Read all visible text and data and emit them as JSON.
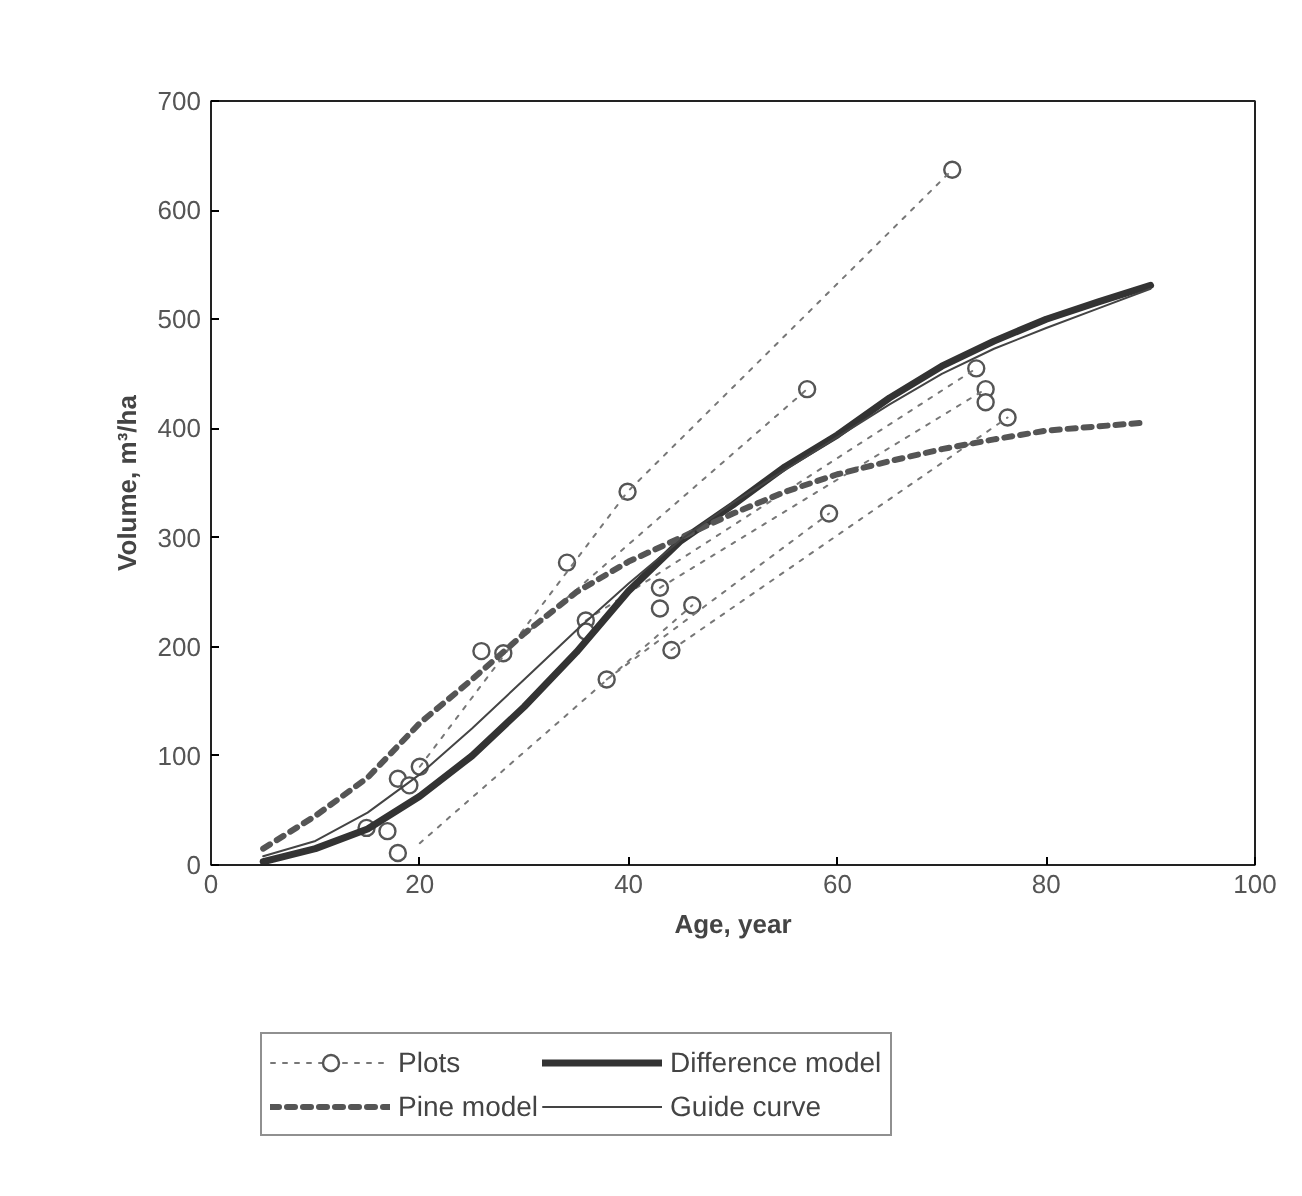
{
  "chart_data": {
    "type": "line",
    "xlabel": "Age, year",
    "ylabel": "Volume, m³/ha",
    "xlim": [
      0,
      100
    ],
    "ylim": [
      0,
      700
    ],
    "xticks": [
      0,
      20,
      40,
      60,
      80,
      100
    ],
    "yticks": [
      0,
      100,
      200,
      300,
      400,
      500,
      600,
      700
    ],
    "grid": false,
    "legend": "bottom",
    "series": [
      {
        "name": "Plots",
        "type": "scatter",
        "marker": "circle",
        "color": "#555555",
        "x": [
          34.1,
          39.9,
          25.9,
          28.0,
          35.9,
          35.9,
          37.9,
          43.0,
          43.0,
          46.1,
          44.1,
          17.9,
          19.0,
          20.0,
          14.9,
          16.9,
          17.9,
          71.0,
          57.1,
          73.3,
          74.2,
          74.2,
          76.3,
          59.2
        ],
        "values": [
          277,
          342,
          196,
          194,
          224,
          214,
          170,
          254,
          235,
          238,
          197,
          79,
          73,
          90,
          34,
          31,
          11,
          637,
          436,
          455,
          436,
          424,
          410,
          322
        ]
      },
      {
        "type": "line",
        "line_style": "dotted",
        "color": "#777777",
        "x": [
          20.0,
          39.9,
          71.0
        ],
        "values": [
          90,
          342,
          637
        ]
      },
      {
        "type": "line",
        "line_style": "dotted",
        "color": "#777777",
        "x": [
          28.0,
          57.1
        ],
        "values": [
          194,
          436
        ]
      },
      {
        "type": "line",
        "line_style": "dotted",
        "color": "#777777",
        "x": [
          35.9,
          73.3
        ],
        "values": [
          224,
          455
        ]
      },
      {
        "type": "line",
        "line_style": "dotted",
        "color": "#777777",
        "x": [
          43.0,
          74.2
        ],
        "values": [
          254,
          436
        ]
      },
      {
        "type": "line",
        "line_style": "dotted",
        "color": "#777777",
        "x": [
          44.1,
          76.3
        ],
        "values": [
          197,
          410
        ]
      },
      {
        "type": "line",
        "line_style": "dotted",
        "color": "#777777",
        "x": [
          37.9,
          59.2
        ],
        "values": [
          170,
          322
        ]
      },
      {
        "type": "line",
        "line_style": "dotted",
        "color": "#777777",
        "x": [
          20.0,
          46.1
        ],
        "values": [
          20,
          238
        ]
      },
      {
        "name": "Difference model",
        "type": "line",
        "line_style": "solid",
        "color": "#333333",
        "x": [
          5,
          10,
          15,
          20,
          25,
          30,
          35,
          40,
          45,
          50,
          55,
          60,
          65,
          70,
          75,
          80,
          85,
          90
        ],
        "values": [
          3,
          15,
          33,
          63,
          100,
          145,
          195,
          251,
          297,
          330,
          365,
          394,
          428,
          457,
          480,
          500,
          516,
          531
        ]
      },
      {
        "name": "Pine model",
        "type": "line",
        "line_style": "dashed",
        "color": "#555555",
        "x": [
          5,
          10,
          15,
          20,
          25,
          30,
          35,
          40,
          45,
          50,
          55,
          60,
          65,
          70,
          75,
          80,
          89
        ],
        "values": [
          15,
          45,
          80,
          130,
          170,
          212,
          250,
          278,
          300,
          322,
          342,
          358,
          370,
          381,
          390,
          398,
          405
        ]
      },
      {
        "name": "Guide curve",
        "type": "line",
        "line_style": "solid",
        "color": "#444444",
        "x": [
          5,
          10,
          15,
          20,
          25,
          30,
          35,
          40,
          45,
          50,
          55,
          60,
          65,
          70,
          75,
          80,
          85,
          90
        ],
        "values": [
          8,
          22,
          48,
          83,
          125,
          170,
          215,
          258,
          298,
          332,
          362,
          392,
          422,
          450,
          473,
          492,
          510,
          528
        ]
      }
    ]
  }
}
